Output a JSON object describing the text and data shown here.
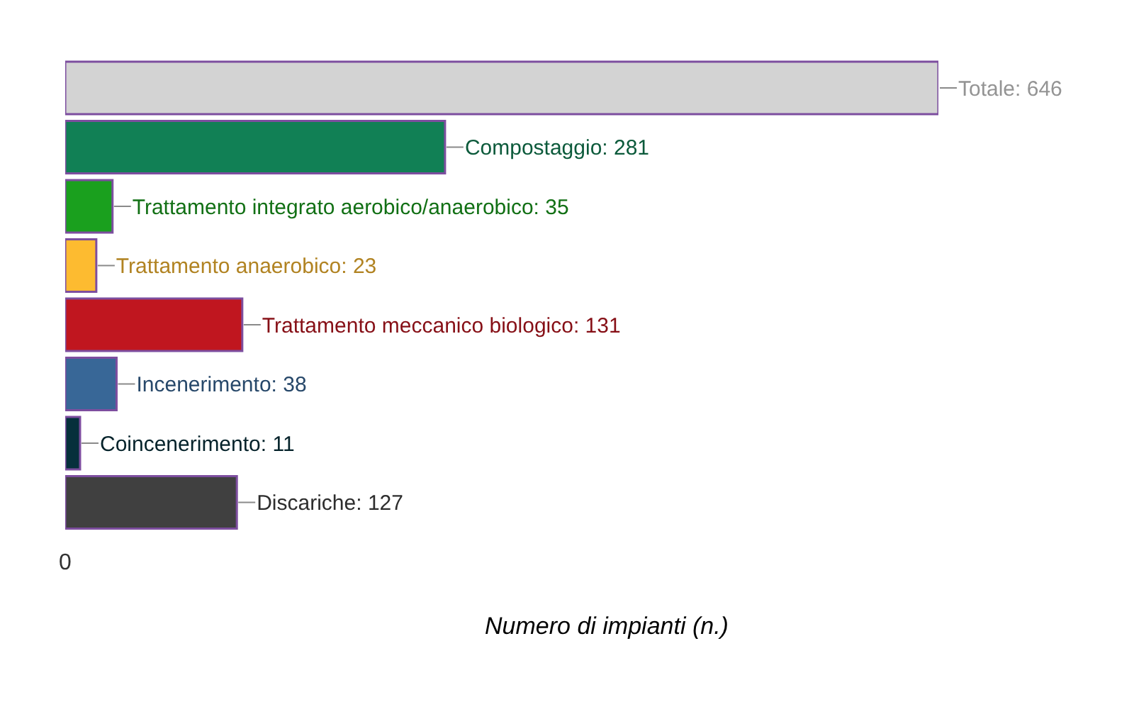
{
  "chart_data": {
    "type": "bar",
    "orientation": "horizontal",
    "categories": [
      null,
      null,
      null,
      null,
      null,
      null,
      null,
      null
    ],
    "values": [
      646,
      281,
      35,
      23,
      131,
      38,
      11,
      127
    ],
    "colors": [
      "#d3d3d3",
      "#118055",
      "#1aa01e",
      "#fdbb30",
      "#c0161f",
      "#386797",
      "#06303c",
      "#404040"
    ],
    "value_labels": [
      "Totale: 646",
      "Compostaggio: 281",
      "Trattamento integrato aerobico/anaerobico: 35",
      "Trattamento anaerobico: 23",
      "Trattamento meccanico biologico: 131",
      "Incenerimento: 38",
      "Coincenerimento: 11",
      "Discariche: 127"
    ],
    "xlabel": "Numero di impianti (n.)",
    "tick_labels": false,
    "annotations": [
      "0"
    ]
  }
}
